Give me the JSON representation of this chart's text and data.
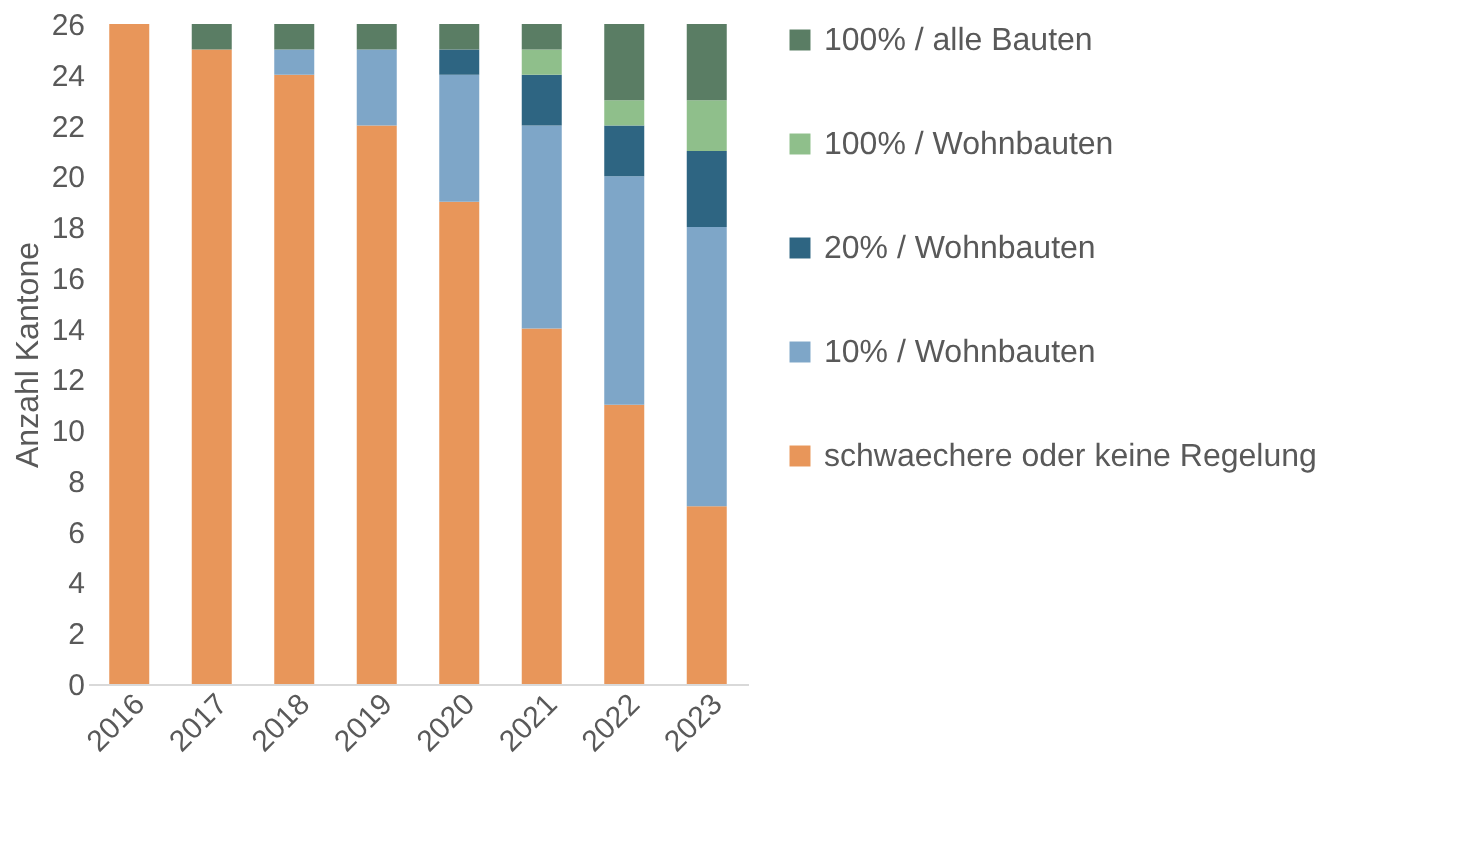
{
  "chart_data": {
    "type": "bar",
    "stacked": true,
    "ylabel": "Anzahl Kantone",
    "categories": [
      "2016",
      "2017",
      "2018",
      "2019",
      "2020",
      "2021",
      "2022",
      "2023"
    ],
    "series": [
      {
        "name": "schwaechere oder keine Regelung",
        "color": "#e8965a",
        "values": [
          26,
          25,
          24,
          22,
          19,
          14,
          11,
          7
        ]
      },
      {
        "name": "10% / Wohnbauten",
        "color": "#7ea6c8",
        "values": [
          0,
          0,
          1,
          3,
          5,
          8,
          9,
          11
        ]
      },
      {
        "name": "20% / Wohnbauten",
        "color": "#2e6582",
        "values": [
          0,
          0,
          0,
          0,
          1,
          2,
          2,
          3
        ]
      },
      {
        "name": "100% / Wohnbauten",
        "color": "#8fbf8b",
        "values": [
          0,
          0,
          0,
          0,
          0,
          1,
          1,
          2
        ]
      },
      {
        "name": "100% / alle Bauten",
        "color": "#5a7d64",
        "values": [
          0,
          1,
          1,
          1,
          1,
          1,
          3,
          3
        ]
      }
    ],
    "ylim": [
      0,
      26
    ],
    "yticks": [
      0,
      2,
      4,
      6,
      8,
      10,
      12,
      14,
      16,
      18,
      20,
      22,
      24,
      26
    ],
    "grid": false,
    "legend": "right"
  }
}
